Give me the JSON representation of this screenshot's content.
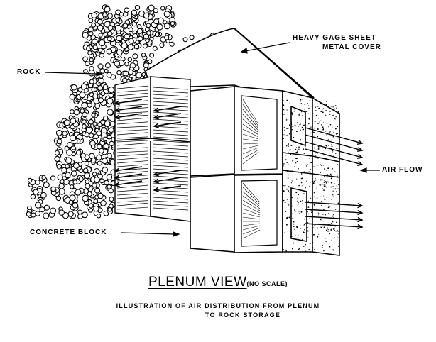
{
  "labels": {
    "cover_line1": "HEAVY GAGE SHEET",
    "cover_line2": "METAL COVER",
    "rock": "ROCK",
    "air_flow": "AIR FLOW",
    "concrete_block": "CONCRETE BLOCK"
  },
  "title": "PLENUM VIEW",
  "title_note": "(NO SCALE)",
  "caption": {
    "line1": "ILLUSTRATION OF AIR DISTRIBUTION FROM PLENUM",
    "line2": "TO ROCK STORAGE"
  },
  "colors": {
    "ink": "#000000",
    "paper": "#ffffff"
  }
}
